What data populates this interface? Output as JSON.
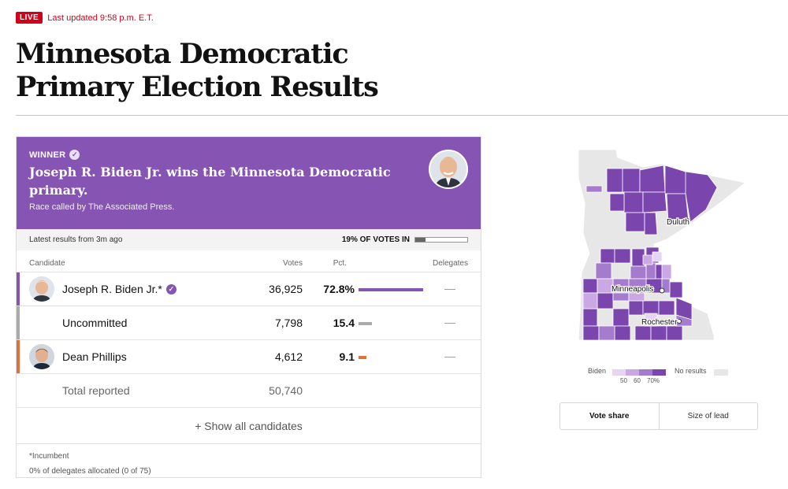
{
  "header": {
    "live_label": "LIVE",
    "last_updated": "Last updated 9:58 p.m. E.T.",
    "headline": "Minnesota Democratic Primary Election Results"
  },
  "winner": {
    "label": "WINNER",
    "title": "Joseph R. Biden Jr. wins the Minnesota Democratic primary.",
    "race_called": "Race called by The Associated Press.",
    "accent": "#8654b2"
  },
  "status": {
    "latest": "Latest results from 3m ago",
    "votes_in": "19% OF VOTES IN",
    "votes_in_fraction": 0.19
  },
  "table": {
    "headers": {
      "candidate": "Candidate",
      "votes": "Votes",
      "pct": "Pct.",
      "delegates": "Delegates"
    },
    "rows": [
      {
        "name": "Joseph R. Biden Jr.*",
        "votes": "36,925",
        "pct": "72.8%",
        "pct_value": 72.8,
        "delegates": "—",
        "color": "#8654b2"
      },
      {
        "name": "Uncommitted",
        "votes": "7,798",
        "pct": "15.4",
        "pct_value": 15.4,
        "delegates": "—",
        "color": "#aaaaaa"
      },
      {
        "name": "Dean Phillips",
        "votes": "4,612",
        "pct": "9.1",
        "pct_value": 9.1,
        "delegates": "—",
        "color": "#e0703c"
      }
    ],
    "total": {
      "label": "Total reported",
      "votes": "50,740"
    },
    "show_all": "+ Show all candidates",
    "footnote_incumbent": "*Incumbent",
    "footnote_delegates": "0% of delegates allocated (0 of 75)"
  },
  "map": {
    "cities": [
      "Duluth",
      "Minneapolis",
      "Rochester"
    ],
    "legend": {
      "biden_label": "Biden",
      "ticks": [
        "50",
        "60",
        "70%"
      ],
      "no_results": "No results",
      "scale_colors": [
        "#e6d5f2",
        "#c9a8e4",
        "#a57ccd",
        "#7a45ad"
      ]
    },
    "toggle": {
      "vote_share": "Vote share",
      "size_of_lead": "Size of lead"
    }
  }
}
